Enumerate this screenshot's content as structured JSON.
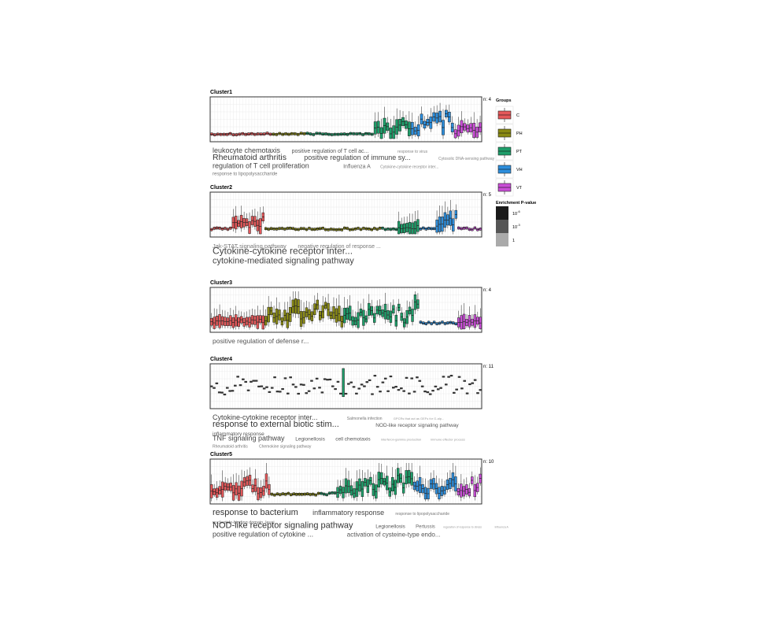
{
  "chart_data": {
    "type": "boxplot",
    "group_order": [
      "C",
      "PH",
      "PT",
      "VH",
      "VT"
    ],
    "legend": {
      "groups_title": "Groups",
      "groups": [
        {
          "label": "C",
          "color": "#E5585A"
        },
        {
          "label": "PH",
          "color": "#8A8A14"
        },
        {
          "label": "PT",
          "color": "#1E9E6A"
        },
        {
          "label": "VH",
          "color": "#2D8EDC"
        },
        {
          "label": "VT",
          "color": "#C94FD6"
        }
      ],
      "pvalue_title": "Enrichment P-value",
      "pvalue_levels": [
        {
          "label": "10",
          "exp": "-6",
          "color": "#1a1a1a"
        },
        {
          "label": "10",
          "exp": "-3",
          "color": "#555555"
        },
        {
          "label": "1",
          "exp": "",
          "color": "#aaaaaa"
        }
      ]
    },
    "clusters": [
      {
        "title": "Cluster1",
        "n_label": "n: 4",
        "group_samples": [
          20,
          11,
          34,
          14,
          9
        ],
        "baseline": 0.14,
        "noise": 0.04,
        "dot_only": false,
        "peaks": [
          {
            "group": "PT",
            "start": 22,
            "end": 34,
            "max": 0.55
          },
          {
            "group": "VH",
            "start": 0,
            "end": 14,
            "max": 0.95
          },
          {
            "group": "VT",
            "start": 0,
            "end": 9,
            "max": 0.5
          }
        ],
        "terms": [
          [
            {
              "t": "leukocyte chemotaxis",
              "s": 9,
              "c": "#444"
            },
            {
              "t": "positive regulation of T cell ac...",
              "s": 7,
              "c": "#555"
            },
            {
              "t": "response to virus",
              "s": 5,
              "c": "#888"
            }
          ],
          [
            {
              "t": "Rheumatoid arthritis",
              "s": 10.5,
              "c": "#333"
            },
            {
              "t": "positive regulation of immune sy...",
              "s": 9,
              "c": "#444"
            },
            {
              "t": "Cytosolic DNA-sensing pathway",
              "s": 5,
              "c": "#888"
            }
          ],
          [
            {
              "t": "regulation of T cell proliferation",
              "s": 9,
              "c": "#444"
            },
            {
              "t": "Influenza A",
              "s": 7,
              "c": "#666"
            },
            {
              "t": "Cytokine-cytokine receptor inter...",
              "s": 5,
              "c": "#888"
            }
          ],
          [
            {
              "t": "response to lipopolysaccharide",
              "s": 6,
              "c": "#777"
            }
          ]
        ]
      },
      {
        "title": "Cluster2",
        "n_label": "n: 5",
        "group_samples": [
          20,
          43,
          14,
          14,
          9
        ],
        "baseline": 0.15,
        "noise": 0.05,
        "dot_only": false,
        "peaks": [
          {
            "group": "C",
            "start": 8,
            "end": 20,
            "max": 0.6
          },
          {
            "group": "PT",
            "start": 6,
            "end": 14,
            "max": 0.25
          },
          {
            "group": "VH",
            "start": 6,
            "end": 14,
            "max": 0.7
          }
        ],
        "terms": [
          [
            {
              "t": "Jak-STAT signaling pathway",
              "s": 7.5,
              "c": "#777"
            },
            {
              "t": "negative regulation of response ...",
              "s": 7,
              "c": "#777"
            }
          ],
          [
            {
              "t": "Cytokine-cytokine receptor inter...",
              "s": 12,
              "c": "#444"
            }
          ],
          [
            {
              "t": "cytokine-mediated signaling pathway",
              "s": 11,
              "c": "#444"
            }
          ]
        ]
      },
      {
        "title": "Cluster3",
        "n_label": "n: 4",
        "group_samples": [
          20,
          29,
          28,
          14,
          9
        ],
        "baseline": 0.18,
        "noise": 0.05,
        "dot_only": false,
        "peaks": [
          {
            "group": "C",
            "start": 0,
            "end": 20,
            "max": 0.3
          },
          {
            "group": "PH",
            "start": 0,
            "end": 29,
            "max": 0.85
          },
          {
            "group": "PT",
            "start": 0,
            "end": 28,
            "max": 0.75
          },
          {
            "group": "VT",
            "start": 0,
            "end": 9,
            "max": 0.25
          }
        ],
        "terms": [
          [
            {
              "t": "positive regulation of defense r...",
              "s": 8.5,
              "c": "#555"
            }
          ]
        ]
      },
      {
        "title": "Cluster4",
        "n_label": "n: 11",
        "group_samples": [
          20,
          30,
          30,
          14,
          9
        ],
        "baseline": 0.55,
        "noise": 0.25,
        "dot_only": true,
        "peaks": [
          {
            "group": "PT",
            "start": 0,
            "end": 1,
            "max": 0.95
          }
        ],
        "terms": [
          [
            {
              "t": "Cytokine-cytokine receptor inter...",
              "s": 9,
              "c": "#444"
            },
            {
              "t": "Salmonella infection",
              "s": 5,
              "c": "#777"
            },
            {
              "t": "GPCRs that act as GEFs for G-alp...",
              "s": 4,
              "c": "#999"
            }
          ],
          [
            {
              "t": "response to external biotic stim...",
              "s": 11,
              "c": "#333"
            },
            {
              "t": "NOD-like receptor signaling pathway",
              "s": 6.5,
              "c": "#555"
            }
          ],
          [
            {
              "t": "inflammatory response",
              "s": 6.5,
              "c": "#555"
            }
          ],
          [
            {
              "t": "TNF signaling pathway",
              "s": 9,
              "c": "#444"
            },
            {
              "t": "Legionellosis",
              "s": 6.5,
              "c": "#555"
            },
            {
              "t": "cell chemotaxis",
              "s": 6.5,
              "c": "#555"
            },
            {
              "t": "interferon-gamma production",
              "s": 4,
              "c": "#999"
            },
            {
              "t": "immune effector process",
              "s": 4,
              "c": "#999"
            }
          ],
          [
            {
              "t": "Rheumatoid arthritis",
              "s": 5,
              "c": "#777"
            },
            {
              "t": "Chemokine signaling pathway",
              "s": 5,
              "c": "#777"
            }
          ]
        ]
      },
      {
        "title": "Cluster5",
        "n_label": "n: 10",
        "group_samples": [
          22,
          18,
          34,
          16,
          9
        ],
        "baseline": 0.2,
        "noise": 0.06,
        "dot_only": false,
        "peaks": [
          {
            "group": "C",
            "start": 0,
            "end": 22,
            "max": 0.65
          },
          {
            "group": "PT",
            "start": 6,
            "end": 34,
            "max": 0.75
          },
          {
            "group": "VH",
            "start": 0,
            "end": 16,
            "max": 0.7
          },
          {
            "group": "VT",
            "start": 0,
            "end": 9,
            "max": 0.7
          }
        ],
        "terms": [
          [
            {
              "t": "response to bacterium",
              "s": 11,
              "c": "#333"
            },
            {
              "t": "inflammatory response",
              "s": 9,
              "c": "#444"
            },
            {
              "t": "response to lipopolysaccharide",
              "s": 5,
              "c": "#777"
            }
          ],
          [
            {
              "t": "nucleotide-binding domain, leuci...",
              "s": 5.5,
              "c": "#666"
            }
          ],
          [
            {
              "t": "NOD-like receptor signaling pathway",
              "s": 11,
              "c": "#333"
            },
            {
              "t": "Legionellosis",
              "s": 6.5,
              "c": "#555"
            },
            {
              "t": "Pertussis",
              "s": 6,
              "c": "#666"
            },
            {
              "t": "regulation of response to stress",
              "s": 3.5,
              "c": "#999"
            },
            {
              "t": "Influenza A",
              "s": 3.5,
              "c": "#999"
            }
          ],
          [
            {
              "t": "positive regulation of cytokine ...",
              "s": 9,
              "c": "#444"
            },
            {
              "t": "activation of cysteine-type endo...",
              "s": 8,
              "c": "#555"
            }
          ]
        ]
      }
    ]
  }
}
